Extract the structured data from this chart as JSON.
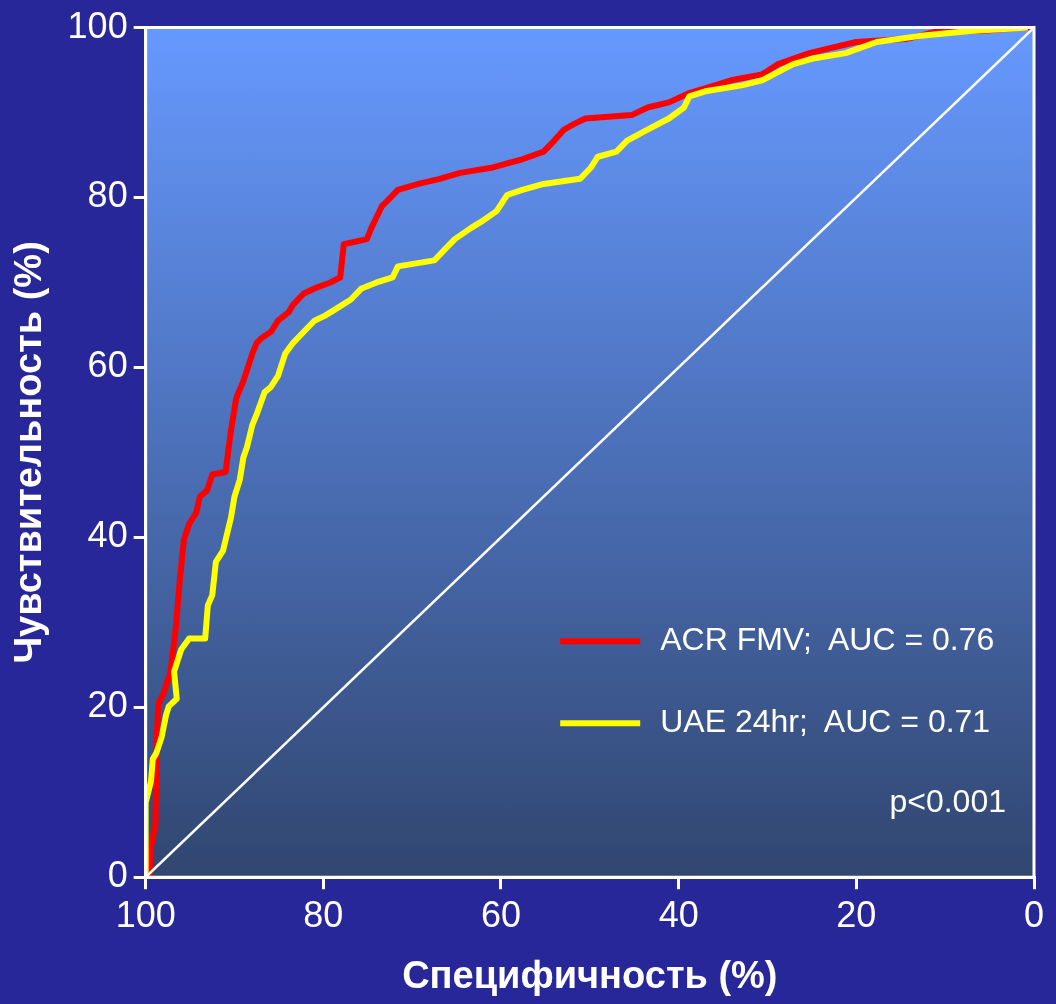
{
  "chart_data": {
    "type": "line",
    "xlabel": "Специфичность (%)",
    "ylabel": "Чувствительность (%)",
    "xlim": [
      100,
      0
    ],
    "xticks": [
      100,
      80,
      60,
      40,
      20,
      0
    ],
    "ylim": [
      0,
      100
    ],
    "yticks": [
      0,
      20,
      40,
      60,
      80,
      100
    ],
    "grid": false,
    "legend": "bottom right",
    "marker": "none",
    "line_style": "solid",
    "annotations": [
      "p<0.001"
    ],
    "series": [
      {
        "name": "ACR FMV;  AUC = 0.76",
        "color": "#ff0000",
        "x": [
          99.6,
          99.4,
          98.9,
          98.8,
          98.6,
          98.0,
          97.2,
          96.6,
          96.2,
          95.7,
          95.1,
          94.3,
          93.9,
          93.1,
          92.5,
          91.0,
          90.4,
          89.8,
          89.0,
          88.0,
          87.5,
          86.9,
          85.9,
          85.1,
          83.9,
          83.4,
          82.2,
          81.0,
          79.2,
          78.1,
          77.7,
          75.1,
          74.6,
          74.0,
          73.4,
          72.8,
          71.6,
          69.3,
          66.9,
          64.6,
          61.1,
          57.6,
          55.2,
          54.0,
          52.9,
          51.7,
          50.5,
          45.3,
          43.5,
          41.1,
          38.8,
          34.1,
          30.6,
          28.8,
          25.3,
          20.0,
          14.2,
          10.7,
          6.0,
          1.3,
          0
        ],
        "values": [
          0,
          3.6,
          6.2,
          13.9,
          20.4,
          21.6,
          24.2,
          29.4,
          34.5,
          39.7,
          41.6,
          42.9,
          44.8,
          45.5,
          47.4,
          47.7,
          52.6,
          56.4,
          58.4,
          61.6,
          62.9,
          63.5,
          64.2,
          65.5,
          66.5,
          67.4,
          68.7,
          69.3,
          70.0,
          70.6,
          74.5,
          75.1,
          76.4,
          77.7,
          79.0,
          79.6,
          80.9,
          81.6,
          82.2,
          82.9,
          83.5,
          84.5,
          85.4,
          86.7,
          88.0,
          88.7,
          89.3,
          89.7,
          90.6,
          91.2,
          92.3,
          93.8,
          94.5,
          95.7,
          97.0,
          98.3,
          98.7,
          99.6,
          99.6,
          100,
          100
        ]
      },
      {
        "name": "UAE 24hr;  AUC = 0.71",
        "color": "#ffff00",
        "x": [
          100,
          100,
          99.4,
          99.2,
          98.8,
          98.2,
          97.7,
          97.4,
          96.5,
          96.8,
          96.0,
          95.1,
          93.3,
          93.0,
          92.5,
          92.1,
          91.3,
          91.0,
          90.4,
          90.0,
          89.4,
          89.0,
          88.6,
          88.0,
          87.5,
          86.6,
          85.9,
          85.1,
          84.3,
          83.4,
          82.2,
          81.0,
          79.8,
          78.7,
          76.9,
          75.7,
          74.0,
          72.2,
          71.6,
          67.5,
          66.4,
          65.2,
          63.4,
          62.3,
          60.5,
          59.3,
          57.6,
          55.2,
          51.1,
          49.9,
          49.1,
          47.0,
          45.8,
          43.5,
          41.1,
          39.4,
          38.8,
          37.0,
          32.9,
          30.6,
          27.1,
          24.7,
          21.2,
          17.7,
          13.0,
          7.2,
          0.7
        ],
        "values": [
          0,
          8.8,
          11.3,
          13.9,
          14.6,
          16.5,
          19.1,
          20.1,
          21.0,
          24.2,
          26.8,
          28.1,
          28.1,
          32.0,
          33.2,
          37.1,
          38.4,
          39.7,
          42.3,
          44.8,
          46.8,
          49.4,
          50.6,
          53.2,
          54.5,
          57.1,
          57.7,
          59.0,
          61.6,
          62.9,
          64.2,
          65.5,
          66.1,
          66.8,
          68.0,
          69.3,
          70.0,
          70.6,
          71.9,
          72.6,
          73.8,
          75.1,
          76.4,
          77.1,
          78.4,
          80.3,
          80.9,
          81.6,
          82.2,
          83.5,
          84.8,
          85.4,
          86.7,
          88.0,
          89.3,
          90.6,
          91.9,
          92.5,
          93.2,
          93.8,
          95.7,
          96.4,
          97.0,
          98.3,
          99.0,
          99.6,
          100
        ]
      },
      {
        "color": "#ffffff",
        "x": [
          100,
          0
        ],
        "values": [
          0,
          100
        ]
      }
    ]
  }
}
